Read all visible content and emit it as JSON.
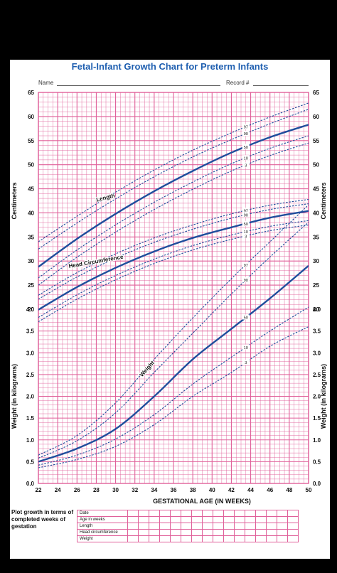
{
  "header": {
    "title": "Fetal-Infant Growth Chart for Preterm Infants",
    "name_label": "Name",
    "record_label": "Record #"
  },
  "footer": {
    "plot_note": "Plot growth in terms of completed weeks of gestation",
    "table_rows": [
      "Date",
      "Age in weeks",
      "Length",
      "Head circumference",
      "Weight"
    ]
  },
  "colors": {
    "grid": "#e0609a",
    "curve": "#1f4e9c",
    "title": "#1f5fb0",
    "background": "#000000"
  },
  "chart_data": {
    "type": "line",
    "xlabel": "GESTATIONAL AGE (IN WEEKS)",
    "xlim": [
      22,
      50
    ],
    "x_ticks": [
      22,
      24,
      26,
      28,
      30,
      32,
      34,
      36,
      38,
      40,
      42,
      44,
      46,
      48,
      50
    ],
    "upper_axis": {
      "label": "Centimeters",
      "ylim": [
        20,
        65
      ],
      "ticks": [
        "20",
        "25",
        "30",
        "35",
        "40",
        "45",
        "50",
        "55",
        "60",
        "65"
      ]
    },
    "lower_axis": {
      "label": "Weight (in kilograms)",
      "ylim": [
        0,
        4.0
      ],
      "ticks": [
        "0.0",
        "0.5",
        "1.0",
        "1.5",
        "2.0",
        "2.5",
        "3.0",
        "3.5",
        "4.0"
      ]
    },
    "groups": [
      {
        "name": "Length",
        "axis": "upper",
        "x": [
          22,
          26,
          30,
          34,
          38,
          42,
          46,
          50
        ],
        "series": [
          {
            "name": "97",
            "values": [
              34.0,
              39.3,
              44.3,
              48.9,
              53.0,
              56.6,
              59.9,
              62.8
            ]
          },
          {
            "name": "90",
            "values": [
              32.5,
              37.9,
              42.9,
              47.5,
              51.6,
              55.2,
              58.5,
              61.5
            ]
          },
          {
            "name": "50",
            "values": [
              28.8,
              34.6,
              39.8,
              44.5,
              48.7,
              52.5,
              55.7,
              58.3
            ]
          },
          {
            "name": "10",
            "values": [
              26.5,
              32.3,
              37.5,
              42.2,
              46.4,
              50.2,
              53.4,
              56.0
            ]
          },
          {
            "name": "3",
            "values": [
              25.0,
              30.8,
              36.0,
              40.7,
              44.9,
              48.7,
              51.9,
              54.5
            ]
          }
        ]
      },
      {
        "name": "Head Circumference",
        "axis": "upper",
        "x": [
          22,
          26,
          30,
          34,
          38,
          42,
          46,
          50
        ],
        "series": [
          {
            "name": "97",
            "values": [
              22.9,
              27.6,
              31.5,
              34.8,
              37.5,
              39.8,
              41.6,
              42.8
            ]
          },
          {
            "name": "90",
            "values": [
              22.1,
              26.7,
              30.6,
              33.9,
              36.6,
              38.9,
              40.7,
              41.9
            ]
          },
          {
            "name": "50",
            "values": [
              19.9,
              24.6,
              28.6,
              32.0,
              34.8,
              37.0,
              39.0,
              40.4
            ]
          },
          {
            "name": "10",
            "values": [
              18.3,
              23.0,
              27.0,
              30.4,
              33.2,
              35.4,
              37.2,
              38.4
            ]
          },
          {
            "name": "3",
            "values": [
              17.4,
              22.1,
              26.1,
              29.5,
              32.3,
              34.5,
              36.3,
              37.5
            ]
          }
        ]
      },
      {
        "name": "Weight",
        "axis": "lower",
        "x": [
          22,
          26,
          30,
          34,
          38,
          42,
          46,
          50
        ],
        "series": [
          {
            "name": "97",
            "values": [
              0.65,
              1.1,
              1.85,
              2.85,
              3.8,
              4.7,
              5.55,
              6.4
            ]
          },
          {
            "name": "90",
            "values": [
              0.58,
              0.98,
              1.62,
              2.55,
              3.45,
              4.35,
              5.2,
              6.0
            ]
          },
          {
            "name": "50",
            "values": [
              0.5,
              0.8,
              1.25,
              2.0,
              2.85,
              3.55,
              4.25,
              5.0
            ]
          },
          {
            "name": "10",
            "values": [
              0.42,
              0.65,
              1.02,
              1.58,
              2.28,
              2.9,
              3.5,
              4.05
            ]
          },
          {
            "name": "3",
            "values": [
              0.36,
              0.55,
              0.85,
              1.35,
              2.0,
              2.55,
              3.15,
              3.6
            ]
          }
        ]
      }
    ],
    "grid": true
  }
}
